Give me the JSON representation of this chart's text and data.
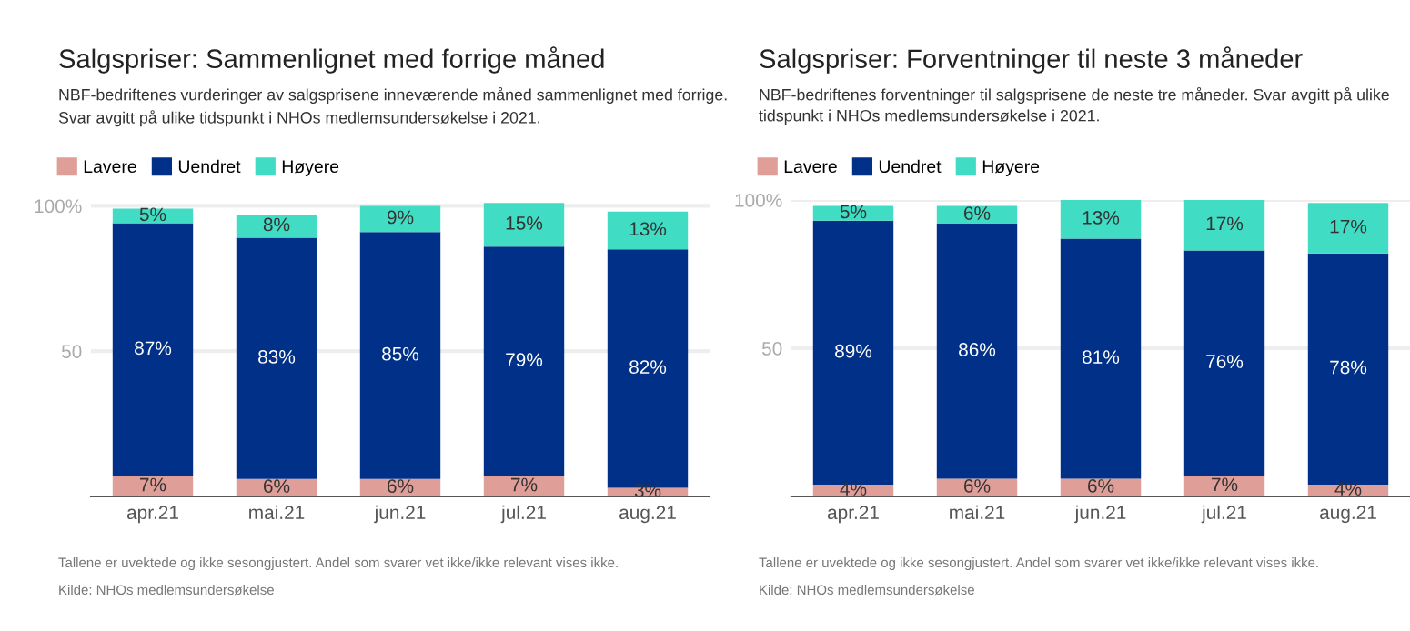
{
  "chart_data": [
    {
      "type": "bar",
      "title": "Salgspriser: Sammenlignet med forrige måned",
      "subtitle": "NBF-bedriftenes vurderinger av salgsprisene inneværende måned sammenlignet med forrige.\nSvar avgitt på ulike tidspunkt i NHOs medlemsundersøkelse i 2021.",
      "categories": [
        "apr.21",
        "mai.21",
        "jun.21",
        "jul.21",
        "aug.21"
      ],
      "stacked": true,
      "series": [
        {
          "name": "Lavere",
          "color": "#e09e99",
          "values": [
            7,
            6,
            6,
            7,
            3
          ],
          "value_labels": [
            "7%",
            "6%",
            "6%",
            "7%",
            "3%"
          ]
        },
        {
          "name": "Uendret",
          "color": "#003087",
          "values": [
            87,
            83,
            85,
            79,
            82
          ],
          "value_labels": [
            "87%",
            "83%",
            "85%",
            "79%",
            "82%"
          ]
        },
        {
          "name": "Høyere",
          "color": "#40dcc4",
          "values": [
            5,
            8,
            9,
            15,
            13
          ],
          "value_labels": [
            "5%",
            "8%",
            "9%",
            "15%",
            "13%"
          ]
        }
      ],
      "ylim": [
        0,
        102
      ],
      "yticks": [
        50,
        {
          "value": 100,
          "label": "100%"
        }
      ],
      "grid": "y",
      "legend": "top left",
      "annotations": [
        "Tallene er uvektede og ikke sesongjustert. Andel som svarer vet ikke/ikke relevant vises ikke.",
        "Kilde: NHOs medlemsundersøkelse"
      ]
    },
    {
      "type": "bar",
      "title": "Salgspriser: Forventninger til neste 3 måneder",
      "subtitle": "NBF-bedriftenes forventninger til salgsprisene de neste tre måneder. Svar avgitt på ulike\ntidspunkt i NHOs medlemsundersøkelse i 2021.",
      "categories": [
        "apr.21",
        "mai.21",
        "jun.21",
        "jul.21",
        "aug.21"
      ],
      "stacked": true,
      "series": [
        {
          "name": "Lavere",
          "color": "#e09e99",
          "values": [
            4,
            6,
            6,
            7,
            4
          ],
          "value_labels": [
            "4%",
            "6%",
            "6%",
            "7%",
            "4%"
          ]
        },
        {
          "name": "Uendret",
          "color": "#003087",
          "values": [
            89,
            86,
            81,
            76,
            78
          ],
          "value_labels": [
            "89%",
            "86%",
            "81%",
            "76%",
            "78%"
          ]
        },
        {
          "name": "Høyere",
          "color": "#40dcc4",
          "values": [
            5,
            6,
            13,
            17,
            17
          ],
          "value_labels": [
            "5%",
            "6%",
            "13%",
            "17%",
            "17%"
          ]
        }
      ],
      "ylim": [
        0,
        100
      ],
      "yticks": [
        50,
        {
          "value": 100,
          "label": "100%"
        }
      ],
      "grid": "y",
      "legend": "top left",
      "annotations": [
        "Tallene er uvektede og ikke sesongjustert. Andel som svarer vet ikke/ikke relevant vises ikke.",
        "Kilde: NHOs medlemsundersøkelse"
      ]
    }
  ]
}
